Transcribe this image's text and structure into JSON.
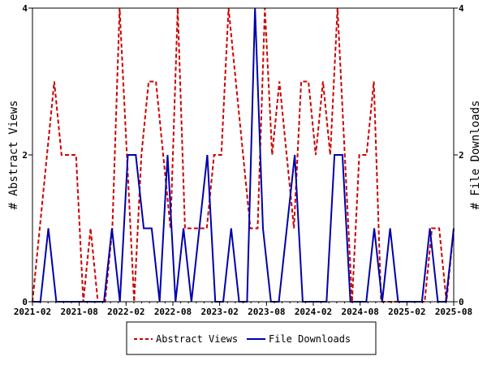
{
  "chart_data": {
    "type": "line",
    "ylabel_left": "# Abstract Views",
    "ylabel_right": "# File Downloads",
    "x_tick_labels": [
      "2021-02",
      "2021-08",
      "2022-02",
      "2022-08",
      "2023-02",
      "2023-08",
      "2024-02",
      "2024-08",
      "2025-02",
      "2025-08"
    ],
    "y_tick_labels": [
      "0",
      "2",
      "4"
    ],
    "ylim": [
      0,
      4
    ],
    "x_start": "2021-02",
    "x_end": "2025-08",
    "grid": false,
    "legend_position": "bottom",
    "series": [
      {
        "name": "Abstract Views",
        "color": "#cc0000",
        "style": "dashed",
        "values": [
          0,
          1,
          2,
          3,
          2,
          2,
          2,
          0,
          1,
          0,
          0,
          1,
          4,
          2,
          0,
          2,
          3,
          3,
          2,
          1,
          4,
          1,
          1,
          1,
          1,
          2,
          2,
          4,
          3,
          2,
          1,
          1,
          4,
          2,
          3,
          2,
          1,
          3,
          3,
          2,
          3,
          2,
          4,
          2,
          0,
          2,
          2,
          3,
          0,
          0,
          0,
          0,
          0,
          0,
          0,
          1,
          1,
          0,
          1
        ]
      },
      {
        "name": "File Downloads",
        "color": "#0000aa",
        "style": "solid",
        "values": [
          0,
          0,
          1,
          0,
          0,
          0,
          0,
          0,
          0,
          0,
          1,
          0,
          2,
          2,
          1,
          1,
          0,
          2,
          0,
          1,
          0,
          1,
          2,
          0,
          0,
          1,
          0,
          0,
          4,
          1,
          0,
          0,
          1,
          2,
          0,
          0,
          0,
          0,
          2,
          2,
          0,
          0,
          0,
          1,
          0,
          1,
          0,
          0,
          0,
          0,
          1,
          0,
          0,
          1
        ]
      }
    ]
  }
}
